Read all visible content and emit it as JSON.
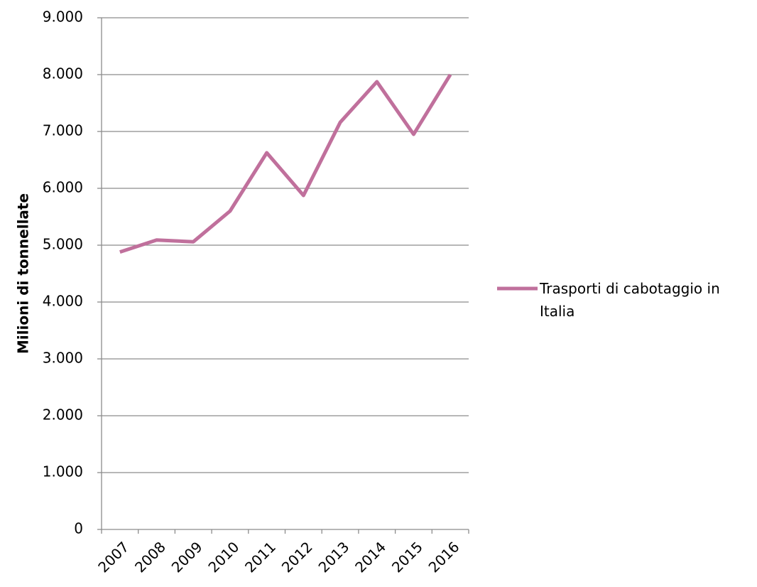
{
  "chart_data": {
    "type": "line",
    "ylabel": "Milioni di tonnellate",
    "categories": [
      "2007",
      "2008",
      "2009",
      "2010",
      "2011",
      "2012",
      "2013",
      "2014",
      "2015",
      "2016"
    ],
    "series": [
      {
        "name": "Trasporti di cabotaggio in Italia",
        "color": "#c0709c",
        "values": [
          4880,
          5090,
          5060,
          5600,
          6625,
          5875,
          7160,
          7875,
          6950,
          8000
        ]
      }
    ],
    "ylim": [
      0,
      9000
    ],
    "yticks": [
      0,
      {
        "value": 1000,
        "label": "1.000"
      },
      {
        "value": 2000,
        "label": "2.000"
      },
      {
        "value": 3000,
        "label": "3.000"
      },
      {
        "value": 4000,
        "label": "4.000"
      },
      {
        "value": 5000,
        "label": "5.000"
      },
      {
        "value": 6000,
        "label": "6.000"
      },
      {
        "value": 7000,
        "label": "7.000"
      },
      {
        "value": 8000,
        "label": "8.000"
      },
      {
        "value": 9000,
        "label": "9.000"
      }
    ],
    "grid": true,
    "legend": "right"
  }
}
